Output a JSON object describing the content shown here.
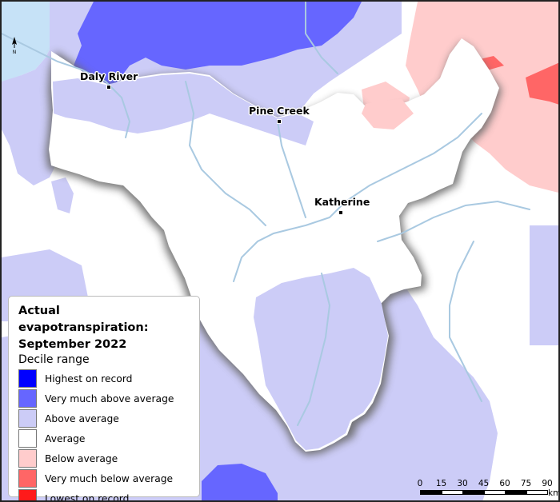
{
  "legend": {
    "title_line1": "Actual evapotranspiration:",
    "title_line2": "September 2022",
    "subtitle": "Decile range",
    "items": [
      {
        "label": "Highest on record",
        "color": "#0000ff"
      },
      {
        "label": "Very much above average",
        "color": "#6666ff"
      },
      {
        "label": "Above average",
        "color": "#ccccf7"
      },
      {
        "label": "Average",
        "color": "#ffffff"
      },
      {
        "label": "Below average",
        "color": "#ffcccc"
      },
      {
        "label": "Very much below average",
        "color": "#ff6666"
      },
      {
        "label": "Lowest on record",
        "color": "#ff1a1a"
      }
    ]
  },
  "towns": [
    {
      "name": "Daly River"
    },
    {
      "name": "Pine Creek"
    },
    {
      "name": "Katherine"
    }
  ],
  "north_arrow": {
    "label": "N"
  },
  "scale": {
    "ticks": [
      "0",
      "15",
      "30",
      "45",
      "60",
      "75",
      "90"
    ],
    "unit": "km"
  },
  "colors": {
    "water": "#c6e2f7",
    "river": "#a9c9e1",
    "region_shadow": "#6b6b6b"
  }
}
